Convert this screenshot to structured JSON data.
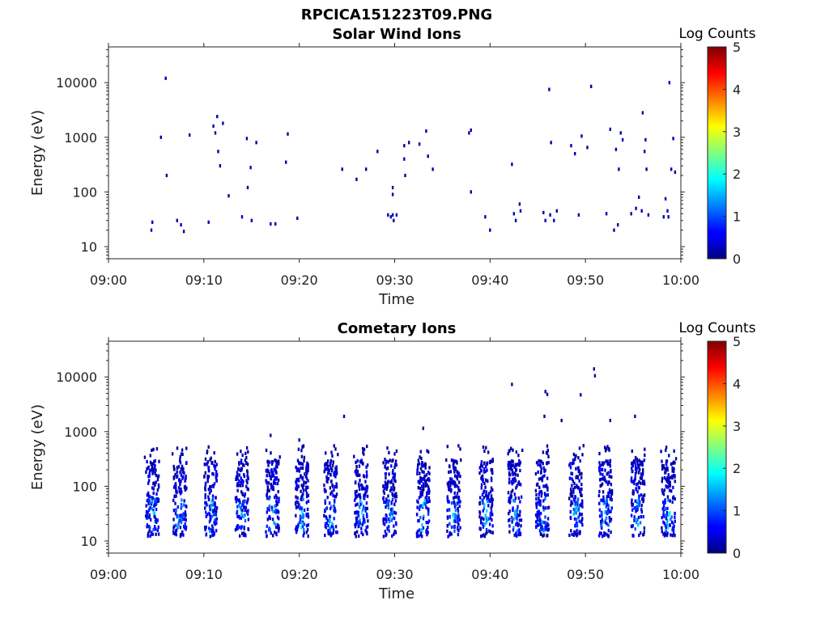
{
  "figure": {
    "title_line1": "RPCICA151223T09.PNG"
  },
  "colorbar": {
    "label": "Log Counts",
    "ticks": [
      "0",
      "1",
      "2",
      "3",
      "4",
      "5"
    ],
    "range": [
      0,
      5
    ],
    "colormap": "jet"
  },
  "chart_data": [
    {
      "type": "heatmap",
      "title": "Solar Wind Ions",
      "xlabel": "Time",
      "ylabel": "Energy (eV)",
      "x_ticks": [
        "09:00",
        "09:10",
        "09:20",
        "09:30",
        "09:40",
        "09:50",
        "10:00"
      ],
      "x_range_minutes": [
        0,
        60
      ],
      "y_scale": "log",
      "y_ticks": [
        "10",
        "100",
        "1000",
        "10000"
      ],
      "y_range": [
        6,
        45000
      ],
      "points": [
        [
          4.5,
          20,
          0.2
        ],
        [
          4.6,
          28,
          0.2
        ],
        [
          5.5,
          1000,
          0.2
        ],
        [
          6.0,
          12000,
          0.2
        ],
        [
          6.1,
          200,
          0.2
        ],
        [
          7.2,
          30,
          0.2
        ],
        [
          7.6,
          25,
          0.3
        ],
        [
          7.9,
          19,
          0.2
        ],
        [
          8.5,
          1100,
          0.2
        ],
        [
          10.5,
          28,
          0.3
        ],
        [
          11.0,
          1600,
          0.2
        ],
        [
          11.2,
          1200,
          0.2
        ],
        [
          11.4,
          2400,
          0.2
        ],
        [
          11.5,
          550,
          0.2
        ],
        [
          11.7,
          300,
          0.2
        ],
        [
          12.0,
          1800,
          0.2
        ],
        [
          12.6,
          85,
          0.2
        ],
        [
          14.0,
          35,
          0.3
        ],
        [
          14.5,
          950,
          0.2
        ],
        [
          14.6,
          120,
          0.2
        ],
        [
          14.9,
          280,
          0.3
        ],
        [
          15.0,
          30,
          0.2
        ],
        [
          15.5,
          800,
          0.2
        ],
        [
          17.0,
          26,
          0.3
        ],
        [
          17.5,
          26,
          0.2
        ],
        [
          18.6,
          350,
          0.2
        ],
        [
          18.8,
          1150,
          0.2
        ],
        [
          19.8,
          33,
          0.2
        ],
        [
          24.5,
          260,
          0.2
        ],
        [
          26.0,
          170,
          0.2
        ],
        [
          27.0,
          260,
          0.2
        ],
        [
          28.2,
          550,
          0.2
        ],
        [
          29.3,
          38,
          0.3
        ],
        [
          29.6,
          35,
          0.4
        ],
        [
          29.8,
          38,
          0.3
        ],
        [
          29.9,
          30,
          0.2
        ],
        [
          29.8,
          120,
          0.2
        ],
        [
          29.8,
          90,
          0.2
        ],
        [
          30.2,
          38,
          0.3
        ],
        [
          31.0,
          700,
          0.2
        ],
        [
          31.0,
          400,
          0.2
        ],
        [
          31.1,
          200,
          0.2
        ],
        [
          31.5,
          800,
          0.2
        ],
        [
          32.6,
          750,
          0.2
        ],
        [
          33.3,
          1300,
          0.2
        ],
        [
          33.5,
          450,
          0.2
        ],
        [
          34.0,
          260,
          0.2
        ],
        [
          37.8,
          1200,
          0.2
        ],
        [
          38.0,
          100,
          0.2
        ],
        [
          38.0,
          1350,
          0.2
        ],
        [
          39.5,
          35,
          0.2
        ],
        [
          40.0,
          20,
          0.2
        ],
        [
          42.3,
          320,
          0.2
        ],
        [
          42.5,
          40,
          0.4
        ],
        [
          42.7,
          30,
          0.2
        ],
        [
          43.1,
          60,
          0.2
        ],
        [
          43.2,
          45,
          0.2
        ],
        [
          45.6,
          42,
          0.3
        ],
        [
          45.8,
          30,
          0.2
        ],
        [
          46.2,
          7500,
          0.2
        ],
        [
          46.4,
          800,
          0.2
        ],
        [
          46.3,
          38,
          0.3
        ],
        [
          46.7,
          30,
          0.3
        ],
        [
          47.0,
          45,
          0.2
        ],
        [
          48.5,
          700,
          0.2
        ],
        [
          48.9,
          500,
          0.2
        ],
        [
          49.3,
          38,
          0.2
        ],
        [
          49.6,
          1050,
          0.2
        ],
        [
          50.2,
          650,
          0.2
        ],
        [
          50.6,
          8500,
          0.2
        ],
        [
          52.2,
          40,
          0.2
        ],
        [
          52.6,
          1400,
          0.2
        ],
        [
          53.0,
          20,
          0.2
        ],
        [
          53.2,
          600,
          0.2
        ],
        [
          53.4,
          25,
          0.2
        ],
        [
          53.5,
          260,
          0.2
        ],
        [
          53.7,
          1200,
          0.2
        ],
        [
          53.9,
          900,
          0.2
        ],
        [
          54.8,
          40,
          0.2
        ],
        [
          55.3,
          50,
          0.3
        ],
        [
          55.6,
          80,
          0.2
        ],
        [
          55.9,
          45,
          0.2
        ],
        [
          56.0,
          2800,
          0.2
        ],
        [
          56.2,
          550,
          0.2
        ],
        [
          56.3,
          900,
          0.2
        ],
        [
          56.4,
          260,
          0.2
        ],
        [
          56.6,
          38,
          0.2
        ],
        [
          58.2,
          35,
          0.2
        ],
        [
          58.4,
          75,
          0.3
        ],
        [
          58.6,
          45,
          0.3
        ],
        [
          58.7,
          35,
          0.2
        ],
        [
          58.8,
          10000,
          0.2
        ],
        [
          59.0,
          260,
          0.2
        ],
        [
          59.2,
          950,
          0.2
        ],
        [
          59.4,
          230,
          0.2
        ]
      ]
    },
    {
      "type": "heatmap",
      "title": "Cometary Ions",
      "xlabel": "Time",
      "ylabel": "Energy (eV)",
      "x_ticks": [
        "09:00",
        "09:10",
        "09:20",
        "09:30",
        "09:40",
        "09:50",
        "10:00"
      ],
      "x_range_minutes": [
        0,
        60
      ],
      "y_scale": "log",
      "y_ticks": [
        "10",
        "100",
        "1000",
        "10000"
      ],
      "y_range": [
        6,
        45000
      ],
      "bursts_minutes": [
        4.6,
        7.5,
        10.7,
        14.0,
        17.2,
        20.3,
        23.3,
        26.5,
        29.5,
        33.0,
        36.2,
        39.6,
        42.6,
        45.5,
        49.0,
        52.1,
        55.5,
        58.7
      ],
      "points": [
        [
          42.3,
          7300,
          0.2
        ],
        [
          45.8,
          5400,
          0.2
        ],
        [
          46.0,
          4800,
          0.2
        ],
        [
          45.7,
          1900,
          0.2
        ],
        [
          47.5,
          1600,
          0.2
        ],
        [
          49.5,
          4700,
          0.2
        ],
        [
          50.9,
          14000,
          0.2
        ],
        [
          51.0,
          10500,
          0.2
        ],
        [
          52.6,
          1600,
          0.2
        ],
        [
          55.2,
          1900,
          0.2
        ],
        [
          24.7,
          1900,
          0.2
        ],
        [
          33.0,
          1150,
          0.2
        ],
        [
          17.0,
          850,
          0.2
        ],
        [
          20.0,
          700,
          0.2
        ]
      ]
    }
  ]
}
